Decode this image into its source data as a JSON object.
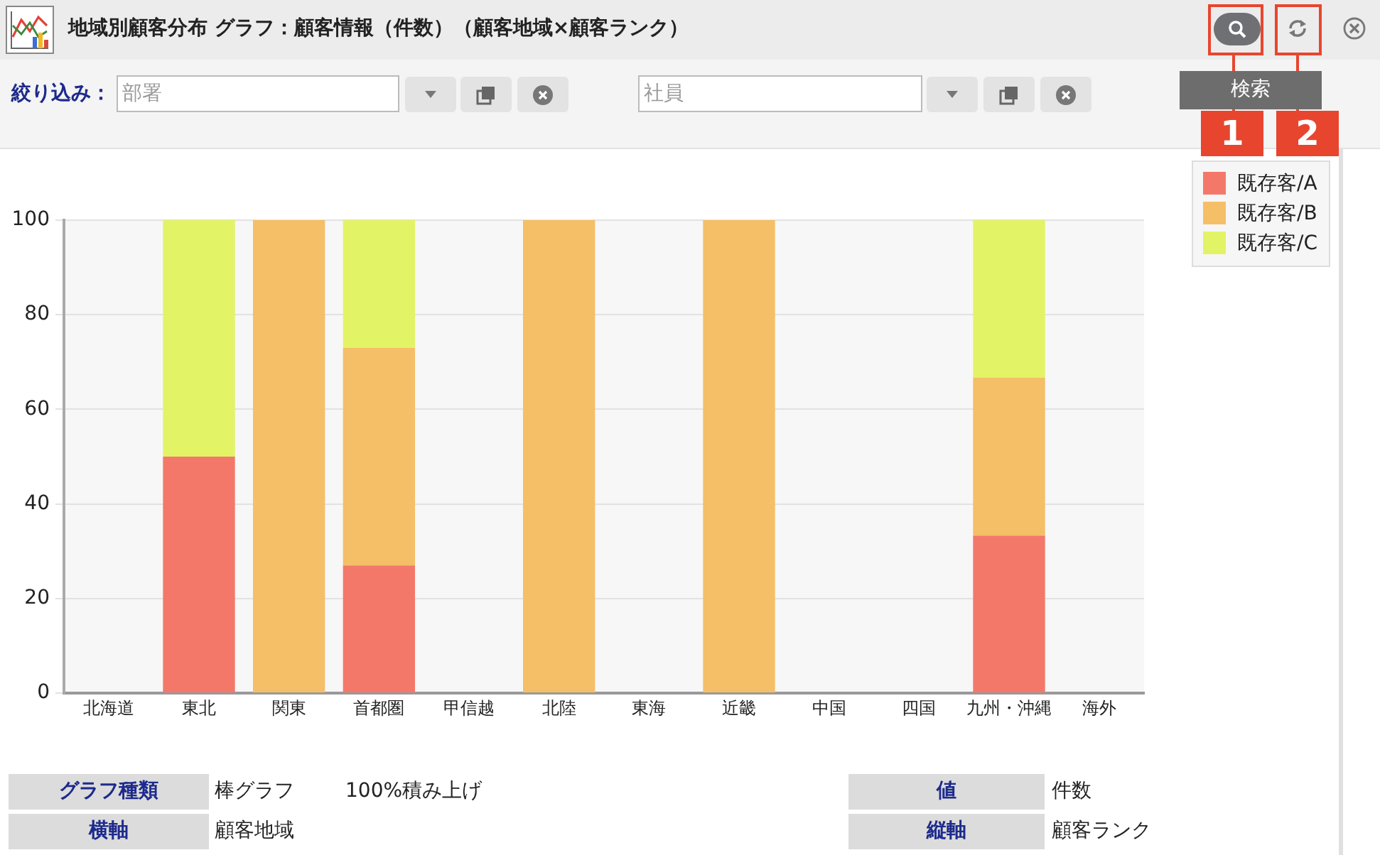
{
  "chart_data": {
    "type": "bar",
    "title": "地域別顧客分布 グラフ：顧客情報（件数）（顧客地域×顧客ランク）",
    "categories": [
      "北海道",
      "東北",
      "関東",
      "首都圏",
      "甲信越",
      "北陸",
      "東海",
      "近畿",
      "中国",
      "四国",
      "九州・沖縄",
      "海外"
    ],
    "series": [
      {
        "name": "既存客/A",
        "color": "#f4786a",
        "values": [
          0,
          50,
          0,
          27,
          0,
          0,
          0,
          0,
          0,
          0,
          33.3,
          0
        ]
      },
      {
        "name": "既存客/B",
        "color": "#f5bf67",
        "values": [
          0,
          0,
          100,
          46,
          0,
          100,
          0,
          100,
          0,
          0,
          33.4,
          0
        ]
      },
      {
        "name": "既存客/C",
        "color": "#e3f366",
        "values": [
          0,
          50,
          0,
          27,
          0,
          0,
          0,
          0,
          0,
          0,
          33.3,
          0
        ]
      }
    ],
    "stacked": true,
    "ylim": [
      0,
      100
    ],
    "yticks": [
      0,
      20,
      40,
      60,
      80,
      100
    ],
    "grid": "y",
    "legend": "top right",
    "annotations": [
      "絞り込み：",
      "部署",
      "社員",
      "検索",
      "1",
      "2",
      "グラフ種類",
      "棒グラフ",
      "100%積み上げ",
      "値",
      "件数",
      "横軸",
      "顧客地域",
      "縦軸",
      "顧客ランク"
    ]
  }
}
